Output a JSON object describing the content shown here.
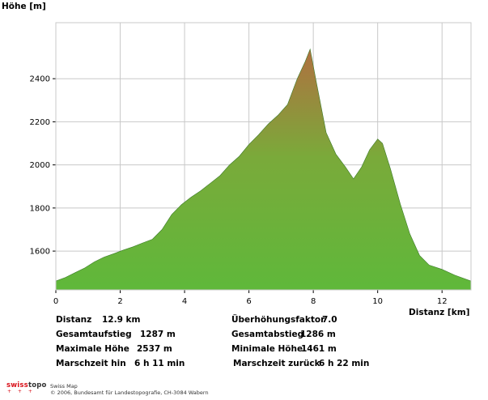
{
  "chart_data": {
    "type": "area",
    "ylabel": "Höhe [m]",
    "xlabel": "Distanz [km]",
    "xlim": [
      0,
      12.9
    ],
    "ylim": [
      1420,
      2660
    ],
    "xticks": [
      0,
      2,
      4,
      6,
      8,
      10,
      12
    ],
    "yticks": [
      1600,
      1800,
      2000,
      2200,
      2400
    ],
    "grid": true,
    "series": [
      {
        "name": "",
        "x": [
          0,
          0.3,
          0.6,
          0.9,
          1.2,
          1.5,
          1.8,
          2.1,
          2.4,
          2.7,
          3.0,
          3.3,
          3.6,
          3.9,
          4.2,
          4.5,
          4.8,
          5.1,
          5.4,
          5.7,
          6.0,
          6.3,
          6.6,
          6.9,
          7.2,
          7.5,
          7.75,
          7.9,
          8.1,
          8.4,
          8.7,
          9.0,
          9.25,
          9.5,
          9.75,
          10.0,
          10.15,
          10.4,
          10.7,
          11.0,
          11.3,
          11.6,
          12.0,
          12.4,
          12.9
        ],
        "values": [
          1461,
          1478,
          1500,
          1522,
          1550,
          1572,
          1588,
          1605,
          1620,
          1638,
          1655,
          1700,
          1770,
          1815,
          1850,
          1880,
          1915,
          1950,
          2000,
          2040,
          2095,
          2140,
          2190,
          2230,
          2280,
          2400,
          2480,
          2537,
          2380,
          2150,
          2050,
          1990,
          1935,
          1990,
          2070,
          2120,
          2100,
          1980,
          1820,
          1680,
          1580,
          1535,
          1515,
          1488,
          1461
        ]
      }
    ]
  },
  "stats": {
    "left": [
      {
        "label": "Distanz",
        "value": "12.9 km"
      },
      {
        "label": "Gesamtaufstieg",
        "value": "1287 m"
      },
      {
        "label": "Maximale Höhe",
        "value": "2537 m"
      },
      {
        "label": "Marschzeit hin",
        "value": "6 h 11 min"
      }
    ],
    "right": [
      {
        "label": "Überhöhungsfaktor",
        "value": "7.0"
      },
      {
        "label": "Gesamtabstieg",
        "value": "1286 m"
      },
      {
        "label": "Minimale Höhe",
        "value": "1461 m"
      },
      {
        "label": "Marschzeit zurück",
        "value": "6 h 22 min"
      }
    ]
  },
  "footer": {
    "logo_swiss": "swiss",
    "logo_topo": "topo",
    "product": "Swiss Map",
    "copyright": "© 2006, Bundesamt für Landestopografie, CH-3084 Wabern"
  },
  "colors": {
    "area_top": "#b07040",
    "area_mid": "#7aaa3a",
    "area_bottom": "#5fb83a",
    "grid": "#c8c8c8"
  }
}
